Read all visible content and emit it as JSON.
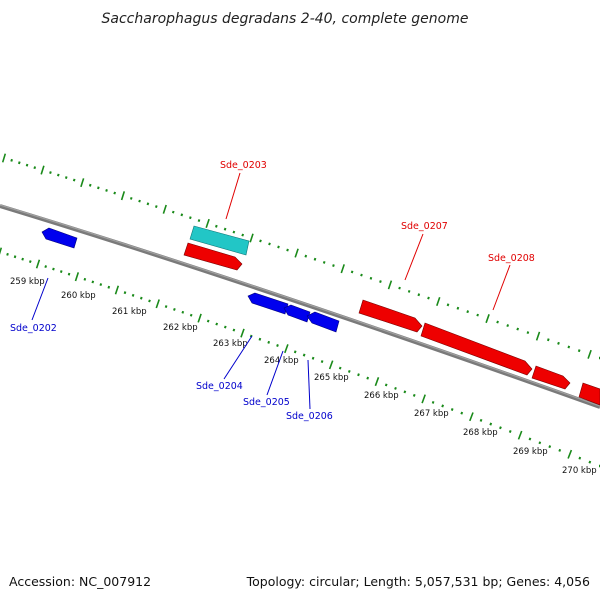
{
  "title": "Saccharophagus degradans 2-40, complete genome",
  "footer": {
    "accession": "Accession: NC_007912",
    "summary": "Topology: circular; Length: 5,057,531 bp; Genes: 4,056"
  },
  "colors": {
    "backbone": "#7a7a7a",
    "tick": "#1a8a1a",
    "forward_gene": "#ee0000",
    "reverse_gene": "#0000ee",
    "other_gene": "#22c6c6",
    "forward_label": "#e00000",
    "reverse_label": "#0000cc"
  },
  "tick_labels": [
    "259 kbp",
    "260 kbp",
    "261 kbp",
    "262 kbp",
    "263 kbp",
    "264 kbp",
    "265 kbp",
    "266 kbp",
    "267 kbp",
    "268 kbp",
    "269 kbp",
    "270 kbp"
  ],
  "gene_labels": [
    {
      "id": "Sde_0202",
      "strand": "reverse"
    },
    {
      "id": "Sde_0203",
      "strand": "forward"
    },
    {
      "id": "Sde_0204",
      "strand": "reverse"
    },
    {
      "id": "Sde_0205",
      "strand": "reverse"
    },
    {
      "id": "Sde_0206",
      "strand": "reverse"
    },
    {
      "id": "Sde_0207",
      "strand": "forward"
    },
    {
      "id": "Sde_0208",
      "strand": "forward"
    }
  ]
}
